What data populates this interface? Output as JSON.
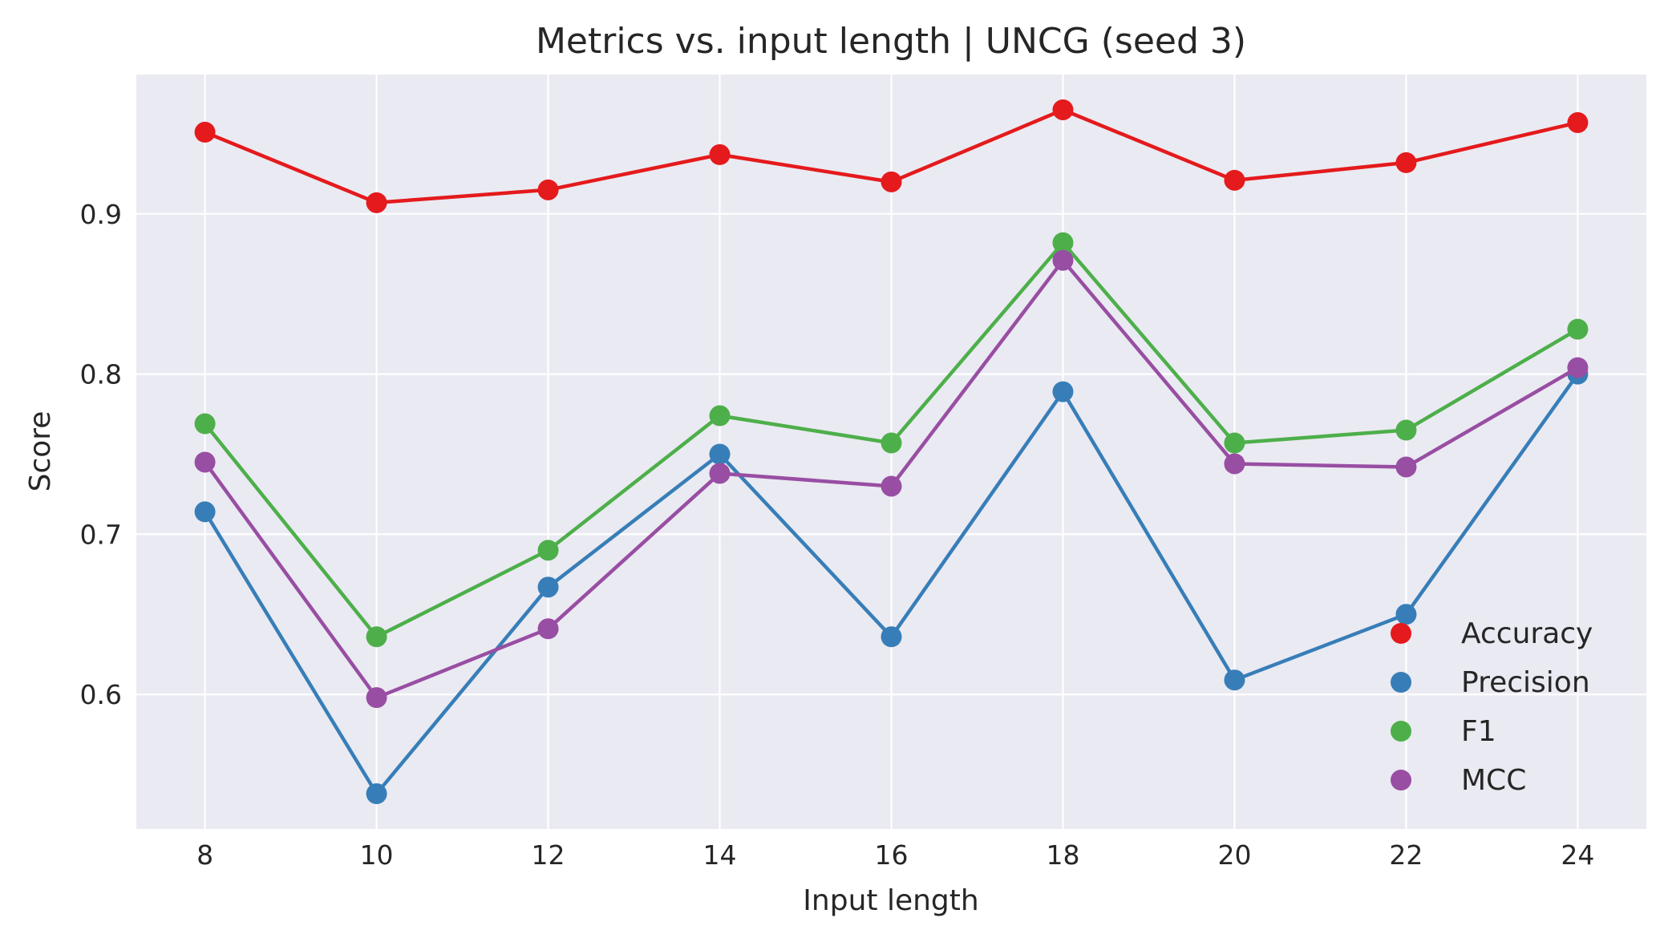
{
  "chart_data": {
    "type": "line",
    "title": "Metrics vs. input length | UNCG (seed 3)",
    "xlabel": "Input length",
    "ylabel": "Score",
    "x": [
      8,
      10,
      12,
      14,
      16,
      18,
      20,
      22,
      24
    ],
    "xticks": [
      8,
      10,
      12,
      14,
      16,
      18,
      20,
      22,
      24
    ],
    "yticks": [
      0.6,
      0.7,
      0.8,
      0.9
    ],
    "ytick_labels": [
      "0.6",
      "0.7",
      "0.8",
      "0.9"
    ],
    "xlim": [
      7.2,
      24.8
    ],
    "ylim": [
      0.516,
      0.987
    ],
    "grid": true,
    "legend_position": "lower-right",
    "series": [
      {
        "name": "Accuracy",
        "color": "#e41a1c",
        "values": [
          0.951,
          0.907,
          0.915,
          0.937,
          0.92,
          0.965,
          0.921,
          0.932,
          0.957
        ]
      },
      {
        "name": "Precision",
        "color": "#377eb8",
        "values": [
          0.714,
          0.538,
          0.667,
          0.75,
          0.636,
          0.789,
          0.609,
          0.65,
          0.8
        ]
      },
      {
        "name": "F1",
        "color": "#4daf4a",
        "values": [
          0.769,
          0.636,
          0.69,
          0.774,
          0.757,
          0.882,
          0.757,
          0.765,
          0.828
        ]
      },
      {
        "name": "MCC",
        "color": "#984ea3",
        "values": [
          0.745,
          0.598,
          0.641,
          0.738,
          0.73,
          0.871,
          0.744,
          0.742,
          0.804
        ]
      }
    ]
  }
}
